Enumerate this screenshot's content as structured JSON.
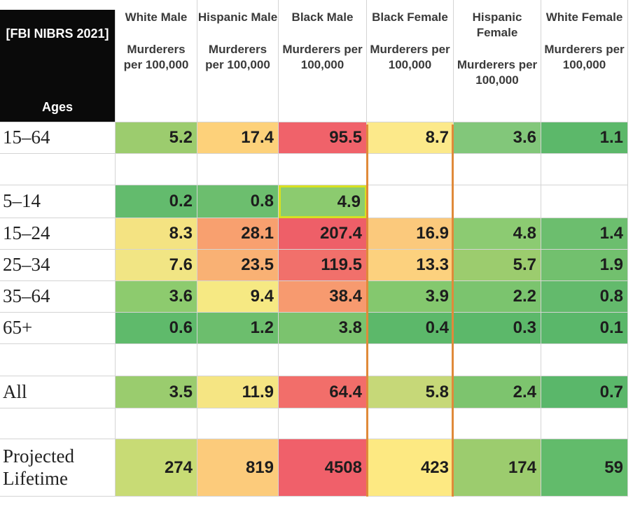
{
  "table": {
    "corner": {
      "title": "[FBI NIBRS 2021]",
      "label": "Ages"
    },
    "columns": [
      {
        "group": "White Male",
        "unit": "Murderers per 100,000"
      },
      {
        "group": "Hispanic Male",
        "unit": "Murderers per 100,000"
      },
      {
        "group": "Black Male",
        "unit": "Murderers per 100,000"
      },
      {
        "group": "Black Female",
        "unit": "Murderers per 100,000"
      },
      {
        "group": "Hispanic Female",
        "unit": "Murderers per 100,000"
      },
      {
        "group": "White Female",
        "unit": "Murderers per 100,000"
      }
    ],
    "rows": [
      {
        "label": "15–64",
        "cells": [
          "5.2",
          "17.4",
          "95.5",
          "8.7",
          "3.6",
          "1.1"
        ],
        "colors": [
          "#9ccc6e",
          "#fdd17a",
          "#f0626a",
          "#fce98a",
          "#82c77a",
          "#5cb86a"
        ]
      },
      {
        "label": "5–14",
        "cells": [
          "0.2",
          "0.8",
          "4.9"
        ],
        "colors": [
          "#63bb6d",
          "#6cbe6e",
          "#8ccb6f"
        ]
      },
      {
        "label": "15–24",
        "cells": [
          "8.3",
          "28.1",
          "207.4",
          "16.9",
          "4.8",
          "1.4"
        ],
        "colors": [
          "#f4e382",
          "#f8a06f",
          "#ee5f68",
          "#fbc97c",
          "#8ccb72",
          "#6cbe6e"
        ]
      },
      {
        "label": "25–34",
        "cells": [
          "7.6",
          "23.5",
          "119.5",
          "13.3",
          "5.7",
          "1.9"
        ],
        "colors": [
          "#f1e584",
          "#f9b174",
          "#f1706b",
          "#fcd17e",
          "#9ccc6e",
          "#72c06e"
        ]
      },
      {
        "label": "35–64",
        "cells": [
          "3.6",
          "9.4",
          "38.4",
          "3.9",
          "2.2",
          "0.8"
        ],
        "colors": [
          "#8dcb6e",
          "#f6e983",
          "#f79a6f",
          "#84c86e",
          "#7bc46e",
          "#63ba6c"
        ]
      },
      {
        "label": "65+",
        "cells": [
          "0.6",
          "1.2",
          "3.8",
          "0.4",
          "0.3",
          "0.1"
        ],
        "colors": [
          "#5fba6b",
          "#6cbe6d",
          "#7bc36e",
          "#5cb86a",
          "#5cb86a",
          "#5ab76a"
        ]
      },
      {
        "label": "All",
        "cells": [
          "3.5",
          "11.9",
          "64.4",
          "5.8",
          "2.4",
          "0.7"
        ],
        "colors": [
          "#9acc6e",
          "#f5e583",
          "#f26e6a",
          "#c6d878",
          "#7dc46e",
          "#5ab76a"
        ]
      },
      {
        "label": "Projected Lifetime",
        "cells": [
          "274",
          "819",
          "4508",
          "423",
          "174",
          "59"
        ],
        "colors": [
          "#c8db75",
          "#fccb7b",
          "#f0606a",
          "#fde982",
          "#9ccc6e",
          "#62bb6b"
        ]
      }
    ]
  }
}
